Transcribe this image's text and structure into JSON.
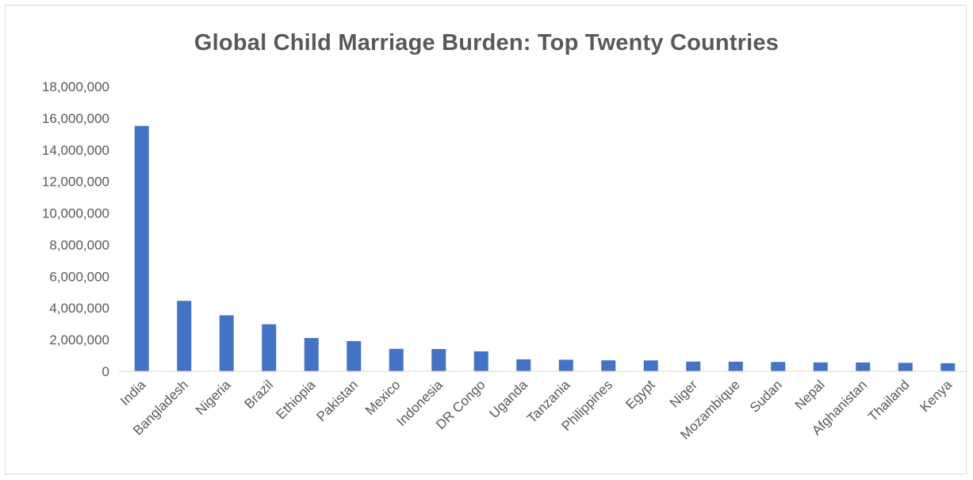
{
  "chart_data": {
    "type": "bar",
    "title": "Global Child Marriage Burden: Top Twenty  Countries",
    "xlabel": "",
    "ylabel": "",
    "categories": [
      "India",
      "Bangladesh",
      "Nigeria",
      "Brazil",
      "Ethiopia",
      "Pakistan",
      "Mexico",
      "Indonesia",
      "DR Congo",
      "Uganda",
      "Tanzania",
      "Philippines",
      "Egypt",
      "Niger",
      "Mozambique",
      "Sudan",
      "Nepal",
      "Afghanistan",
      "Thailand",
      "Kenya"
    ],
    "values": [
      15509000,
      4451000,
      3538000,
      2974000,
      2103000,
      1909000,
      1420000,
      1408000,
      1262000,
      756000,
      731000,
      693000,
      688000,
      612000,
      608000,
      590000,
      563000,
      558000,
      534000,
      510000
    ],
    "ylim": [
      0,
      18000000
    ],
    "yticks": [
      "0",
      "2,000,000",
      "4,000,000",
      "6,000,000",
      "8,000,000",
      "10,000,000",
      "12,000,000",
      "14,000,000",
      "16,000,000",
      "18,000,000"
    ],
    "grid": false,
    "legend": "none",
    "bar_color": "#4472C4"
  }
}
